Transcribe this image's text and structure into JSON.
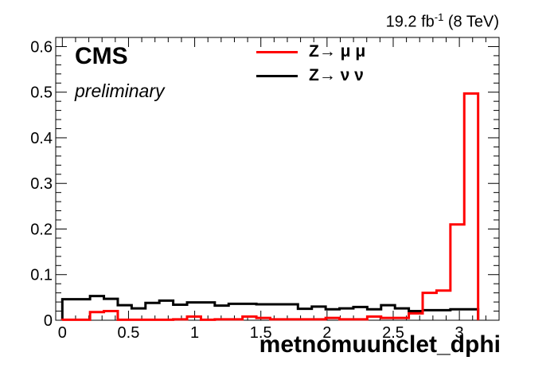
{
  "chart_data": {
    "type": "histogram",
    "lumi_label": "19.2 fb",
    "lumi_sup": "-1",
    "lumi_energy": " (8 TeV)",
    "cms_label": "CMS",
    "preliminary_label": "preliminary",
    "xlabel": "metnomuunclet_dphi",
    "ylabel": "",
    "xlim": [
      -0.05,
      3.3
    ],
    "ylim": [
      0,
      0.62
    ],
    "xticks": [
      {
        "value": 0,
        "label": "0"
      },
      {
        "value": 0.5,
        "label": "0.5"
      },
      {
        "value": 1,
        "label": "1"
      },
      {
        "value": 1.5,
        "label": "1.5"
      },
      {
        "value": 2,
        "label": "2"
      },
      {
        "value": 2.5,
        "label": "2.5"
      },
      {
        "value": 3,
        "label": "3"
      }
    ],
    "yticks": [
      {
        "value": 0,
        "label": "0"
      },
      {
        "value": 0.1,
        "label": "0.1"
      },
      {
        "value": 0.2,
        "label": "0.2"
      },
      {
        "value": 0.3,
        "label": "0.3"
      },
      {
        "value": 0.4,
        "label": "0.4"
      },
      {
        "value": 0.5,
        "label": "0.5"
      },
      {
        "value": 0.6,
        "label": "0.6"
      }
    ],
    "bin_edges": [
      0,
      0.1047,
      0.2094,
      0.3142,
      0.4189,
      0.5236,
      0.6283,
      0.733,
      0.8378,
      0.9425,
      1.0472,
      1.1519,
      1.2566,
      1.3614,
      1.4661,
      1.5708,
      1.6755,
      1.7802,
      1.885,
      1.9897,
      2.0944,
      2.1991,
      2.3038,
      2.4086,
      2.5133,
      2.618,
      2.7227,
      2.8274,
      2.9322,
      3.0369,
      3.1416
    ],
    "grid": false,
    "legend_position": "top",
    "series": [
      {
        "name": "Z→ μ μ",
        "color": "#ff0000",
        "values": [
          0.001,
          0.001,
          0.018,
          0.02,
          0.001,
          0.001,
          0.001,
          0.001,
          0.002,
          0.008,
          0.001,
          0.002,
          0.002,
          0.008,
          0.005,
          0.002,
          0.002,
          0.002,
          0.002,
          0.005,
          0.002,
          0.002,
          0.008,
          0.005,
          0.005,
          0.015,
          0.06,
          0.065,
          0.21,
          0.497
        ]
      },
      {
        "name": "Z→ ν ν",
        "color": "#000000",
        "values": [
          0.046,
          0.046,
          0.053,
          0.047,
          0.033,
          0.026,
          0.038,
          0.043,
          0.034,
          0.039,
          0.039,
          0.032,
          0.036,
          0.036,
          0.035,
          0.035,
          0.035,
          0.025,
          0.03,
          0.024,
          0.026,
          0.029,
          0.024,
          0.033,
          0.026,
          0.02,
          0.022,
          0.022,
          0.024,
          0.024
        ]
      }
    ]
  }
}
